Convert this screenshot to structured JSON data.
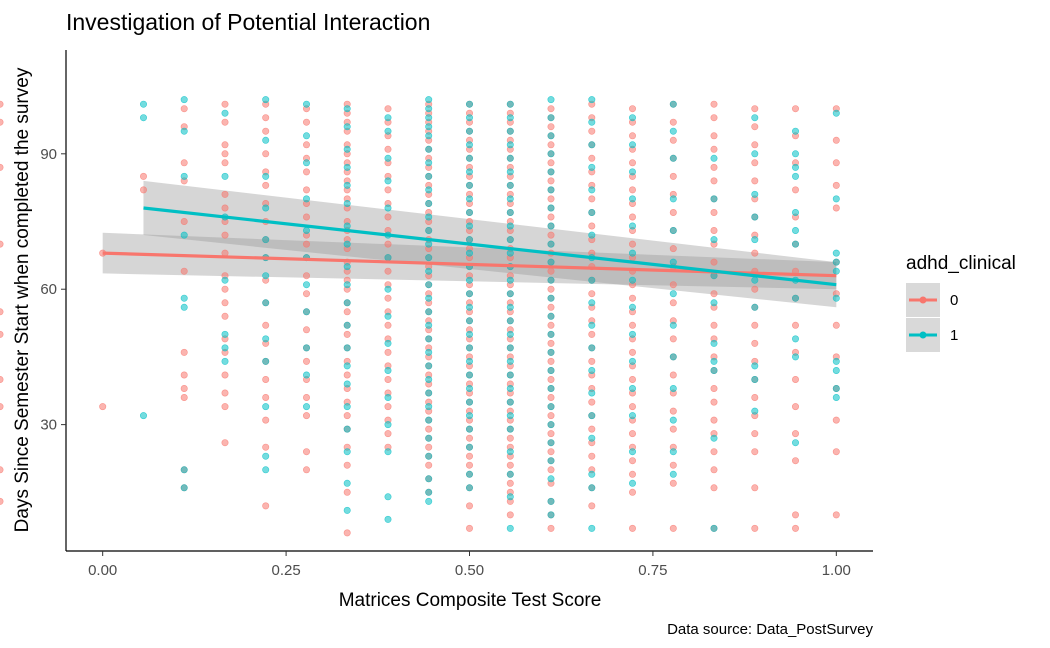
{
  "chart_data": {
    "type": "scatter",
    "title": "Investigation of Potential Interaction",
    "xlabel": "Matrices Composite Test Score",
    "ylabel": "Days Since Semester Start when completed the survey",
    "caption": "Data source: Data_PostSurvey",
    "xlim": [
      -0.05,
      1.05
    ],
    "ylim": [
      2,
      113
    ],
    "x_ticks": [
      0,
      0.25,
      0.5,
      0.75,
      1
    ],
    "x_tick_labels": [
      "0.00",
      "0.25",
      "0.50",
      "0.75",
      "1.00"
    ],
    "y_ticks": [
      30,
      60,
      90
    ],
    "y_tick_labels": [
      "30",
      "60",
      "90"
    ],
    "grid": false,
    "legend": {
      "title": "adhd_clinical",
      "position": "right",
      "entries": [
        "0",
        "1"
      ]
    },
    "x_levels": [
      0,
      0.0556,
      0.1111,
      0.1667,
      0.2222,
      0.2778,
      0.3333,
      0.3889,
      0.4444,
      0.5,
      0.5556,
      0.6111,
      0.6667,
      0.7222,
      0.7778,
      0.8333,
      0.8889,
      0.9444,
      1.0
    ],
    "series": [
      {
        "name": "0",
        "color": "#F8766D",
        "points_by_level": [
          [
            34,
            68
          ],
          [
            85,
            82
          ],
          [
            100,
            96,
            88,
            84,
            75,
            64,
            46,
            41,
            38,
            36,
            20,
            16
          ],
          [
            101,
            97,
            92,
            90,
            88,
            81,
            78,
            75,
            72,
            68,
            63,
            60,
            57,
            54,
            49,
            46,
            41,
            37,
            34,
            26
          ],
          [
            101,
            98,
            95,
            90,
            86,
            83,
            79,
            75,
            71,
            67,
            62,
            57,
            52,
            48,
            44,
            40,
            36,
            31,
            25,
            12
          ],
          [
            100,
            97,
            92,
            89,
            86,
            82,
            79,
            76,
            72,
            70,
            67,
            63,
            59,
            55,
            51,
            47,
            44,
            40,
            36,
            32,
            24,
            20
          ],
          [
            101,
            99,
            97,
            95,
            92,
            90,
            88,
            86,
            84,
            82,
            80,
            78,
            75,
            73,
            71,
            69,
            66,
            64,
            62,
            60,
            57,
            55,
            52,
            50,
            47,
            44,
            41,
            38,
            35,
            32,
            29,
            25,
            21,
            15,
            6
          ],
          [
            100,
            97,
            94,
            91,
            88,
            85,
            82,
            79,
            76,
            73,
            70,
            67,
            64,
            61,
            58,
            55,
            52,
            49,
            46,
            43,
            40,
            37,
            34,
            31,
            28,
            25
          ],
          [
            101,
            99,
            97,
            95,
            93,
            91,
            89,
            87,
            85,
            83,
            81,
            79,
            77,
            75,
            73,
            71,
            69,
            67,
            65,
            63,
            61,
            59,
            57,
            55,
            53,
            51,
            49,
            47,
            45,
            43,
            41,
            39,
            37,
            35,
            33,
            31,
            29,
            27,
            25,
            23,
            21,
            18,
            15
          ],
          [
            101,
            99,
            97,
            95,
            93,
            91,
            89,
            87,
            85,
            83,
            81,
            79,
            77,
            75,
            73,
            71,
            69,
            67,
            65,
            63,
            61,
            59,
            57,
            55,
            53,
            51,
            49,
            47,
            45,
            43,
            41,
            39,
            37,
            35,
            33,
            31,
            29,
            27,
            25,
            23,
            21,
            19,
            16,
            12,
            7
          ],
          [
            101,
            99,
            97,
            95,
            93,
            91,
            89,
            87,
            85,
            83,
            81,
            79,
            77,
            75,
            73,
            71,
            69,
            67,
            65,
            63,
            61,
            59,
            57,
            55,
            53,
            51,
            49,
            47,
            45,
            43,
            41,
            39,
            37,
            35,
            33,
            31,
            29,
            27,
            25,
            23,
            21,
            19,
            17,
            15,
            13,
            10
          ],
          [
            100,
            98,
            96,
            94,
            92,
            90,
            88,
            86,
            84,
            82,
            80,
            78,
            76,
            74,
            72,
            70,
            68,
            66,
            64,
            62,
            60,
            58,
            56,
            54,
            52,
            50,
            48,
            46,
            44,
            42,
            40,
            38,
            36,
            34,
            32,
            30,
            28,
            26,
            24,
            22,
            20,
            17,
            13,
            10,
            7
          ],
          [
            101,
            98,
            95,
            92,
            89,
            86,
            83,
            80,
            77,
            74,
            71,
            68,
            65,
            62,
            59,
            56,
            53,
            50,
            47,
            44,
            41,
            38,
            35,
            32,
            29,
            26,
            23,
            20,
            16,
            12
          ],
          [
            100,
            97,
            94,
            91,
            88,
            85,
            82,
            79,
            76,
            73,
            70,
            67,
            64,
            61,
            58,
            55,
            52,
            49,
            46,
            43,
            40,
            37,
            34,
            31,
            28,
            25,
            22,
            19,
            15,
            7
          ],
          [
            101,
            97,
            93,
            89,
            85,
            81,
            77,
            73,
            69,
            65,
            61,
            57,
            53,
            49,
            45,
            41,
            37,
            33,
            29,
            25,
            21,
            17,
            7
          ],
          [
            101,
            98,
            94,
            91,
            87,
            84,
            80,
            77,
            73,
            70,
            66,
            63,
            59,
            56,
            52,
            49,
            45,
            42,
            38,
            35,
            31,
            28,
            24,
            20,
            16,
            7
          ],
          [
            100,
            96,
            92,
            88,
            84,
            80,
            76,
            72,
            68,
            64,
            60,
            56,
            52,
            48,
            44,
            40,
            36,
            32,
            28,
            24,
            16,
            7
          ],
          [
            100,
            94,
            88,
            82,
            76,
            70,
            64,
            58,
            52,
            46,
            40,
            34,
            28,
            22,
            10,
            7
          ],
          [
            100,
            93,
            88,
            83,
            78,
            66,
            59,
            52,
            45,
            38,
            31,
            24,
            10
          ],
          [
            101,
            97,
            87,
            70,
            55,
            50,
            40,
            34,
            20,
            13
          ]
        ],
        "trend": {
          "x": [
            0,
            1
          ],
          "y": [
            68,
            63
          ],
          "ci_lower": [
            63.5,
            60
          ],
          "ci_upper": [
            72.5,
            66
          ]
        }
      },
      {
        "name": "1",
        "color": "#00BFC4",
        "points_by_level": [
          [],
          [
            101,
            98,
            32
          ],
          [
            102,
            95,
            85,
            72,
            58,
            56,
            20,
            16
          ],
          [
            99,
            85,
            76,
            62,
            50,
            47,
            44
          ],
          [
            102,
            93,
            85,
            78,
            71,
            67,
            63,
            57,
            49,
            44,
            34,
            23,
            20
          ],
          [
            101,
            94,
            88,
            80,
            73,
            67,
            61,
            55,
            47,
            41,
            34
          ],
          [
            100,
            96,
            91,
            87,
            83,
            79,
            74,
            70,
            65,
            61,
            57,
            52,
            47,
            43,
            39,
            34,
            29,
            24,
            17,
            11
          ],
          [
            98,
            95,
            89,
            84,
            78,
            72,
            67,
            60,
            54,
            48,
            42,
            36,
            30,
            24,
            14,
            9
          ],
          [
            102,
            100,
            98,
            96,
            94,
            91,
            88,
            85,
            82,
            79,
            76,
            73,
            70,
            67,
            64,
            61,
            58,
            55,
            52,
            49,
            46,
            43,
            40,
            37,
            34,
            31,
            27,
            23,
            18,
            15,
            13
          ],
          [
            101,
            98,
            95,
            92,
            89,
            86,
            83,
            80,
            77,
            74,
            71,
            68,
            65,
            62,
            59,
            56,
            53,
            50,
            47,
            44,
            41,
            38,
            35,
            32,
            29,
            25,
            19,
            16
          ],
          [
            101,
            98,
            95,
            92,
            89,
            86,
            83,
            80,
            77,
            74,
            71,
            68,
            65,
            62,
            59,
            56,
            53,
            50,
            47,
            44,
            41,
            38,
            35,
            32,
            29,
            24,
            19,
            14,
            7
          ],
          [
            102,
            98,
            94,
            90,
            86,
            82,
            78,
            74,
            70,
            66,
            62,
            58,
            54,
            50,
            46,
            42,
            38,
            34,
            30,
            26,
            22,
            18,
            13,
            10
          ],
          [
            102,
            97,
            92,
            87,
            82,
            77,
            72,
            67,
            62,
            57,
            52,
            47,
            42,
            37,
            32,
            27,
            19,
            16,
            7
          ],
          [
            98,
            92,
            86,
            80,
            74,
            68,
            62,
            56,
            50,
            44,
            38,
            32,
            24,
            17
          ],
          [
            101,
            95,
            89,
            80,
            73,
            66,
            59,
            52,
            45,
            38,
            31,
            24,
            19
          ],
          [
            89,
            80,
            71,
            63,
            57,
            48,
            44,
            42,
            27,
            7
          ],
          [
            98,
            90,
            81,
            76,
            71,
            62,
            56,
            43,
            40,
            33
          ],
          [
            95,
            90,
            87,
            85,
            77,
            73,
            70,
            62,
            58,
            49,
            45,
            26
          ],
          [
            99,
            80,
            68,
            66,
            64,
            58,
            44,
            42,
            38,
            36
          ]
        ],
        "trend": {
          "x": [
            0.0556,
            1
          ],
          "y": [
            78,
            61
          ],
          "ci_lower": [
            72,
            56
          ],
          "ci_upper": [
            84,
            66
          ]
        }
      }
    ]
  }
}
